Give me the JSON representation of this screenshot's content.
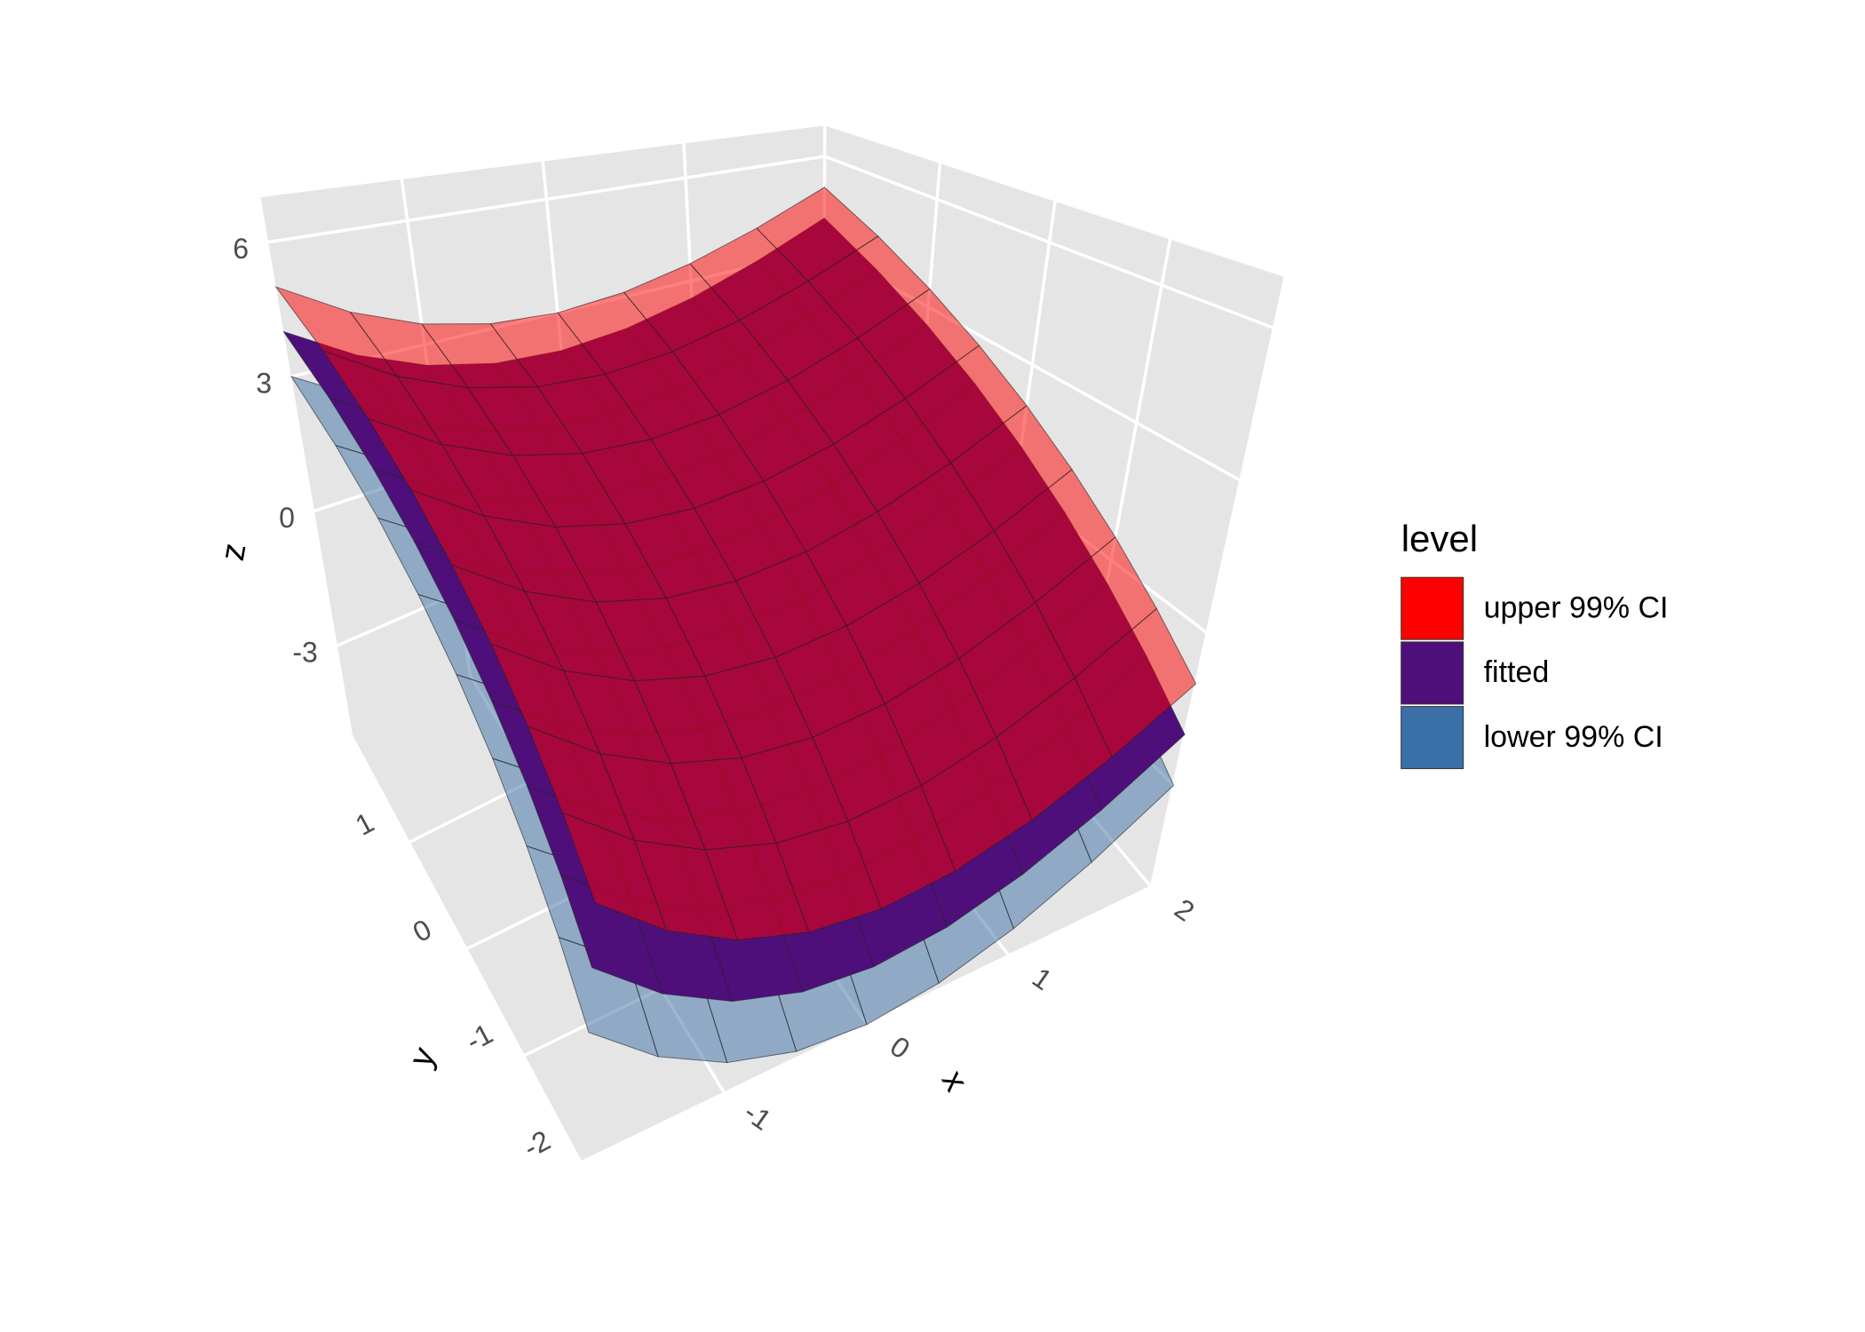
{
  "chart_data": {
    "type": "surface3d",
    "xlabel": "x",
    "ylabel": "y",
    "zlabel": "z",
    "legend_title": "level",
    "legend_position": "right",
    "xlim": [
      -2,
      2
    ],
    "ylim": [
      -2,
      2
    ],
    "zlim": [
      -5,
      7
    ],
    "xticks": [
      -1,
      0,
      1,
      2
    ],
    "yticks": [
      -2,
      -1,
      0,
      1
    ],
    "zticks": [
      -3,
      0,
      3,
      6
    ],
    "grid": true,
    "x": [
      -2,
      -1.5,
      -1,
      -0.5,
      0,
      0.5,
      1,
      1.5,
      2
    ],
    "y": [
      -2,
      -1.5,
      -1,
      -0.5,
      0,
      0.5,
      1,
      1.5,
      2
    ],
    "series": [
      {
        "name": "upper 99% CI",
        "color": "#ff0000",
        "opacity": 0.5,
        "z": [
          [
            -1,
            -1.875,
            -2.5,
            -2.875,
            -3,
            -2.875,
            -2.5,
            -1.875,
            -1
          ],
          [
            -0.25,
            -1.125,
            -1.75,
            -2.125,
            -2.25,
            -2.125,
            -1.75,
            -1.125,
            -0.25
          ],
          [
            0.5,
            -0.375,
            -1,
            -1.375,
            -1.5,
            -1.375,
            -1,
            -0.375,
            0.5
          ],
          [
            1.25,
            0.375,
            -0.25,
            -0.625,
            -0.75,
            -0.625,
            -0.25,
            0.375,
            1.25
          ],
          [
            2,
            1.125,
            0.5,
            0.125,
            0,
            0.125,
            0.5,
            1.125,
            2
          ],
          [
            2.75,
            1.875,
            1.25,
            0.875,
            0.75,
            0.875,
            1.25,
            1.875,
            2.75
          ],
          [
            3.5,
            2.625,
            2,
            1.625,
            1.5,
            1.625,
            2,
            2.625,
            3.5
          ],
          [
            4.25,
            3.375,
            2.75,
            2.375,
            2.25,
            2.375,
            2.75,
            3.375,
            4.25
          ],
          [
            5,
            4.125,
            3.5,
            3.125,
            3,
            3.125,
            3.5,
            4.125,
            5
          ]
        ]
      },
      {
        "name": "fitted",
        "color": "#4f0f7a",
        "opacity": 1,
        "z": [
          [
            -2,
            -2.875,
            -3.5,
            -3.875,
            -4,
            -3.875,
            -3.5,
            -2.875,
            -2
          ],
          [
            -1.25,
            -2.125,
            -2.75,
            -3.125,
            -3.25,
            -3.125,
            -2.75,
            -2.125,
            -1.25
          ],
          [
            -0.5,
            -1.375,
            -2,
            -2.375,
            -2.5,
            -2.375,
            -2,
            -1.375,
            -0.5
          ],
          [
            0.25,
            -0.625,
            -1.25,
            -1.625,
            -1.75,
            -1.625,
            -1.25,
            -0.625,
            0.25
          ],
          [
            1,
            0.125,
            -0.5,
            -0.875,
            -1,
            -0.875,
            -0.5,
            0.125,
            1
          ],
          [
            1.75,
            0.875,
            0.25,
            -0.125,
            -0.25,
            -0.125,
            0.25,
            0.875,
            1.75
          ],
          [
            2.5,
            1.625,
            1,
            0.625,
            0.5,
            0.625,
            1,
            1.625,
            2.5
          ],
          [
            3.25,
            2.375,
            1.75,
            1.375,
            1.25,
            1.375,
            1.75,
            2.375,
            3.25
          ],
          [
            4,
            3.125,
            2.5,
            2.125,
            2,
            2.125,
            2.5,
            3.125,
            4
          ]
        ]
      },
      {
        "name": "lower 99% CI",
        "color": "#3b6fa8",
        "opacity": 0.5,
        "z": [
          [
            -3,
            -3.875,
            -4.5,
            -4.875,
            -5,
            -4.875,
            -4.5,
            -3.875,
            -3
          ],
          [
            -2.25,
            -3.125,
            -3.75,
            -4.125,
            -4.25,
            -4.125,
            -3.75,
            -3.125,
            -2.25
          ],
          [
            -1.5,
            -2.375,
            -3,
            -3.375,
            -3.5,
            -3.375,
            -3,
            -2.375,
            -1.5
          ],
          [
            -0.75,
            -1.625,
            -2.25,
            -2.625,
            -2.75,
            -2.625,
            -2.25,
            -1.625,
            -0.75
          ],
          [
            0,
            -0.875,
            -1.5,
            -1.875,
            -2,
            -1.875,
            -1.5,
            -0.875,
            0
          ],
          [
            0.75,
            -0.125,
            -0.75,
            -1.125,
            -1.25,
            -1.125,
            -0.75,
            -0.125,
            0.75
          ],
          [
            1.5,
            0.625,
            0,
            -0.375,
            -0.5,
            -0.375,
            0,
            0.625,
            1.5
          ],
          [
            2.25,
            1.375,
            0.75,
            0.375,
            0.25,
            0.375,
            0.75,
            1.375,
            2.25
          ],
          [
            3,
            2.125,
            1.5,
            1.125,
            1,
            1.125,
            1.5,
            2.125,
            3
          ]
        ]
      }
    ]
  }
}
